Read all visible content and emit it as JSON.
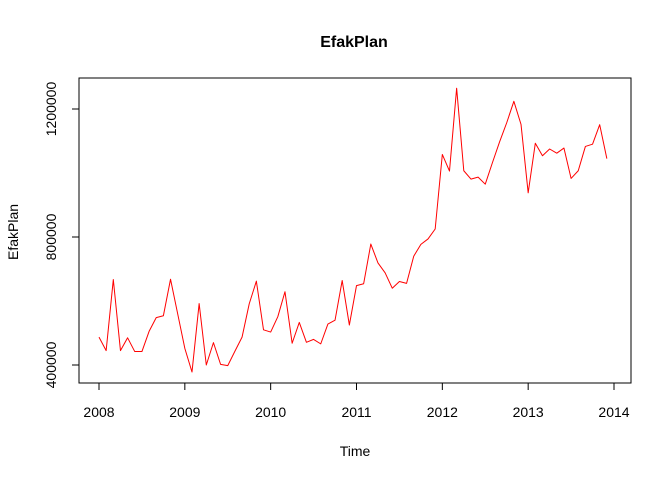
{
  "chart_data": {
    "type": "line",
    "title": "EfakPlan",
    "xlabel": "Time",
    "ylabel": "EfakPlan",
    "xlim": [
      2008,
      2014
    ],
    "ylim": [
      380000,
      1260000
    ],
    "xticks": [
      2008,
      2009,
      2010,
      2011,
      2012,
      2013,
      2014
    ],
    "xtick_labels": [
      "2008",
      "2009",
      "2010",
      "2011",
      "2012",
      "2013",
      "2014"
    ],
    "yticks": [
      400000,
      800000,
      1200000
    ],
    "ytick_labels": [
      "400000",
      "800000",
      "1200000"
    ],
    "grid": false,
    "line_color": "#ff0000",
    "series": [
      {
        "x_start": 2008,
        "frequency": 12,
        "values": [
          487000,
          445000,
          667000,
          445000,
          485000,
          442000,
          442000,
          505000,
          548000,
          554000,
          668000,
          560000,
          452000,
          378000,
          592000,
          400000,
          470000,
          402000,
          398000,
          443000,
          487000,
          591000,
          662000,
          510000,
          503000,
          551000,
          629000,
          468000,
          533000,
          471000,
          480000,
          466000,
          528000,
          540000,
          664000,
          525000,
          648000,
          654000,
          778000,
          719000,
          688000,
          640000,
          661000,
          655000,
          740000,
          777000,
          794000,
          825000,
          1058000,
          1006000,
          1265000,
          1007000,
          981000,
          987000,
          965000,
          1032000,
          1097000,
          1157000,
          1224000,
          1152000,
          938000,
          1093000,
          1054000,
          1075000,
          1062000,
          1078000,
          983000,
          1007000,
          1083000,
          1090000,
          1151000,
          1045000
        ]
      }
    ]
  }
}
